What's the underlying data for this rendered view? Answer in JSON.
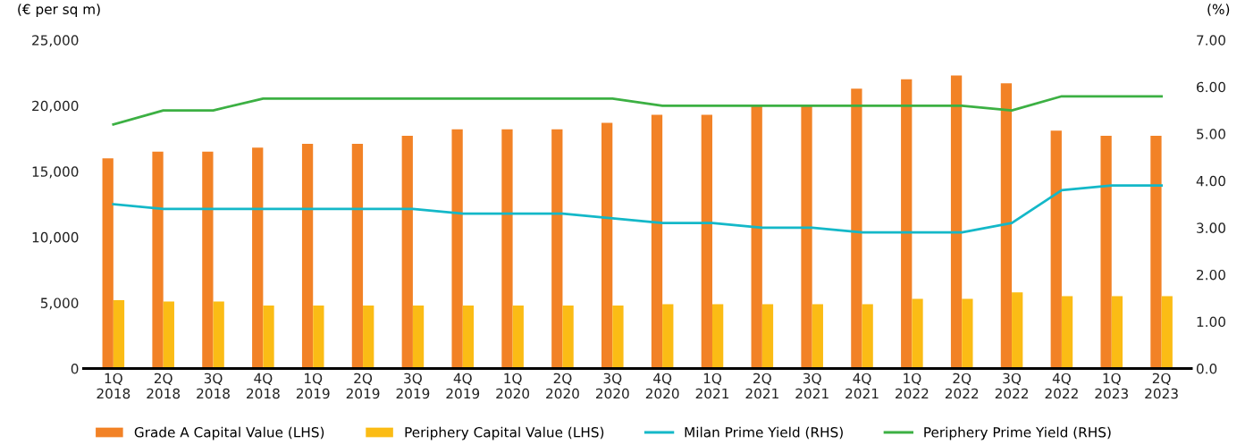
{
  "chart_data": {
    "type": "bar",
    "ylabel": "(€ per sq m)",
    "y2label": "(%)",
    "categories": [
      "1Q\n2018",
      "2Q\n2018",
      "3Q\n2018",
      "4Q\n2018",
      "1Q\n2019",
      "2Q\n2019",
      "3Q\n2019",
      "4Q\n2019",
      "1Q\n2020",
      "2Q\n2020",
      "3Q\n2020",
      "4Q\n2020",
      "1Q\n2021",
      "2Q\n2021",
      "3Q\n2021",
      "4Q\n2021",
      "1Q\n2022",
      "2Q\n2022",
      "3Q\n2022",
      "4Q\n2022",
      "1Q\n2023",
      "2Q\n2023"
    ],
    "series": [
      {
        "name": "Grade A Capital Value (LHS)",
        "color": "#f28226",
        "values": [
          16000,
          16500,
          16500,
          16800,
          17100,
          17100,
          17700,
          18200,
          18200,
          18200,
          18700,
          19300,
          19300,
          20000,
          20000,
          21300,
          22000,
          22300,
          21700,
          18100,
          17700,
          17700
        ]
      },
      {
        "name": "Periphery Capital Value (LHS)",
        "color": "#fbbc15",
        "values": [
          5200,
          5100,
          5100,
          4800,
          4800,
          4800,
          4800,
          4800,
          4800,
          4800,
          4800,
          4900,
          4900,
          4900,
          4900,
          4900,
          5300,
          5300,
          5800,
          5500,
          5500,
          5500
        ]
      },
      {
        "name": "Milan Prime Yield (RHS)",
        "type": "line",
        "axis": "y2",
        "color": "#14b8c8",
        "values": [
          3.5,
          3.4,
          3.4,
          3.4,
          3.4,
          3.4,
          3.4,
          3.3,
          3.3,
          3.3,
          3.2,
          3.1,
          3.1,
          3.0,
          3.0,
          2.9,
          2.9,
          2.9,
          3.1,
          3.8,
          3.9,
          3.9
        ]
      },
      {
        "name": "Periphery Prime Yield (RHS)",
        "type": "line",
        "axis": "y2",
        "color": "#3cb043",
        "values": [
          5.2,
          5.5,
          5.5,
          5.75,
          5.75,
          5.75,
          5.75,
          5.75,
          5.75,
          5.75,
          5.75,
          5.6,
          5.6,
          5.6,
          5.6,
          5.6,
          5.6,
          5.6,
          5.5,
          5.8,
          5.8,
          5.8
        ]
      }
    ],
    "ylim": [
      0,
      25000
    ],
    "yticks": [
      {
        "value": 0,
        "label": "0"
      },
      {
        "value": 5000,
        "label": "5,000"
      },
      {
        "value": 10000,
        "label": "10,000"
      },
      {
        "value": 15000,
        "label": "15,000"
      },
      {
        "value": 20000,
        "label": "20,000"
      },
      {
        "value": 25000,
        "label": "25,000"
      }
    ],
    "y2lim": [
      0,
      7
    ],
    "y2ticks": [
      {
        "value": 0,
        "label": "0.0"
      },
      {
        "value": 1,
        "label": "1.00"
      },
      {
        "value": 2,
        "label": "2.00"
      },
      {
        "value": 3,
        "label": "3.00"
      },
      {
        "value": 4,
        "label": "4.00"
      },
      {
        "value": 5,
        "label": "5.00"
      },
      {
        "value": 6,
        "label": "6.00"
      },
      {
        "value": 7,
        "label": "7.00"
      }
    ],
    "grid": false,
    "legend": "bottom",
    "marker": "none",
    "line_style": "solid"
  }
}
